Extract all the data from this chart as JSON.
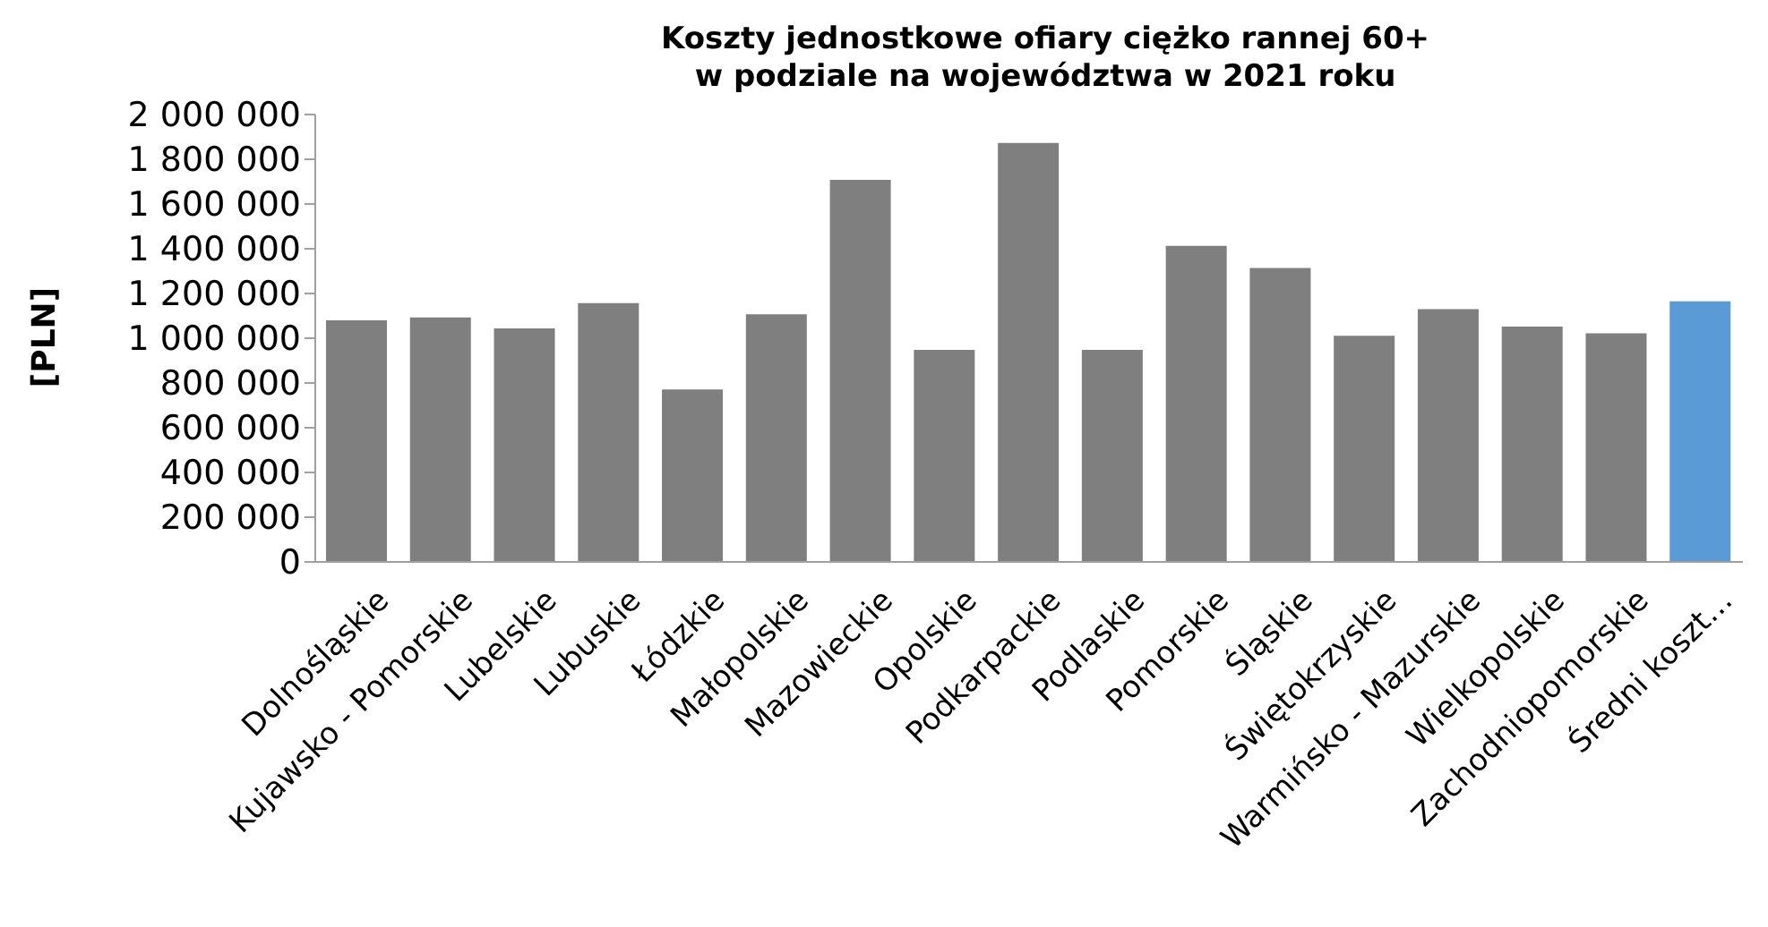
{
  "chart_data": {
    "type": "bar",
    "title": "Koszty jednostkowe ofiary ciężko rannej 60+\nw podziale na województwa w 2021 roku",
    "ylabel": "[PLN]",
    "categories": [
      "Dolnośląskie",
      "Kujawsko - Pomorskie",
      "Lubelskie",
      "Lubuskie",
      "Łódzkie",
      "Małopolskie",
      "Mazowieckie",
      "Opolskie",
      "Podkarpackie",
      "Podlaskie",
      "Pomorskie",
      "Śląskie",
      "Świętokrzyskie",
      "Warmińsko - Mazurskie",
      "Wielkopolskie",
      "Zachodniopomorskie",
      "Średni koszt…"
    ],
    "values": [
      1080000,
      1093000,
      1044000,
      1157000,
      771000,
      1107000,
      1708000,
      948000,
      1873000,
      948000,
      1413000,
      1314000,
      1011000,
      1130000,
      1052000,
      1022000,
      1165000
    ],
    "colors": [
      "#7f7f7f",
      "#7f7f7f",
      "#7f7f7f",
      "#7f7f7f",
      "#7f7f7f",
      "#7f7f7f",
      "#7f7f7f",
      "#7f7f7f",
      "#7f7f7f",
      "#7f7f7f",
      "#7f7f7f",
      "#7f7f7f",
      "#7f7f7f",
      "#7f7f7f",
      "#7f7f7f",
      "#7f7f7f",
      "#5b9bd5"
    ],
    "ylim": [
      0,
      2000000
    ],
    "yticks": [
      0,
      200000,
      400000,
      600000,
      800000,
      1000000,
      1200000,
      1400000,
      1600000,
      1800000,
      2000000
    ],
    "grid": false,
    "legend": false
  }
}
